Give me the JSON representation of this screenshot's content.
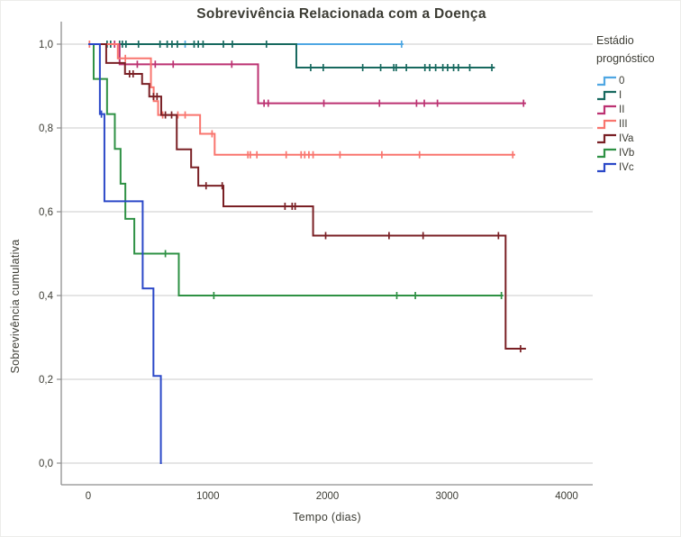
{
  "figure": {
    "title": "Sobrevivência Relacionada com a Doença",
    "x_axis_label": "Tempo (dias)",
    "y_axis_label": "Sobrevivência cumulativa"
  },
  "legend": {
    "title_line1": "Estádio",
    "title_line2": "prognóstico"
  },
  "palette": {
    "gridline": "#cbcbcb",
    "axis": "#8e8e8e",
    "text": "#3c3c34"
  },
  "chart_data": {
    "type": "line",
    "subtype": "kaplan-meier-step",
    "title": "Sobrevivência Relacionada com a Doença",
    "xlabel": "Tempo (dias)",
    "ylabel": "Sobrevivência cumulativa",
    "xlim": [
      0,
      4220
    ],
    "ylim": [
      0.0,
      1.0
    ],
    "grid": "horizontal",
    "legend_position": "right",
    "x_ticks": [
      {
        "value": 0,
        "label": "0"
      },
      {
        "value": 1000,
        "label": "1000"
      },
      {
        "value": 2000,
        "label": "2000"
      },
      {
        "value": 3000,
        "label": "3000"
      },
      {
        "value": 4000,
        "label": "4000"
      }
    ],
    "y_ticks": [
      {
        "value": 0.0,
        "label": "0,0"
      },
      {
        "value": 0.2,
        "label": "0,2"
      },
      {
        "value": 0.4,
        "label": "0,4"
      },
      {
        "value": 0.6,
        "label": "0,6"
      },
      {
        "value": 0.8,
        "label": "0,8"
      },
      {
        "value": 1.0,
        "label": "1,0"
      }
    ],
    "series": [
      {
        "name": "0",
        "color": "#4fa7e3",
        "points": [
          [
            0,
            1.0
          ],
          [
            2635,
            1.0
          ]
        ],
        "censors": [
          [
            810,
            1.0
          ],
          [
            2620,
            1.0
          ]
        ]
      },
      {
        "name": "I",
        "color": "#17695f",
        "points": [
          [
            0,
            1.0
          ],
          [
            1740,
            0.944
          ],
          [
            3400,
            0.944
          ]
        ],
        "censors": [
          [
            157,
            1.0
          ],
          [
            187,
            1.0
          ],
          [
            262,
            1.0
          ],
          [
            285,
            1.0
          ],
          [
            315,
            1.0
          ],
          [
            420,
            1.0
          ],
          [
            600,
            1.0
          ],
          [
            660,
            1.0
          ],
          [
            700,
            1.0
          ],
          [
            745,
            1.0
          ],
          [
            885,
            1.0
          ],
          [
            920,
            1.0
          ],
          [
            960,
            1.0
          ],
          [
            1130,
            1.0
          ],
          [
            1205,
            1.0
          ],
          [
            1490,
            1.0
          ],
          [
            1860,
            0.944
          ],
          [
            1965,
            0.944
          ],
          [
            2295,
            0.944
          ],
          [
            2445,
            0.944
          ],
          [
            2555,
            0.944
          ],
          [
            2575,
            0.944
          ],
          [
            2660,
            0.944
          ],
          [
            2815,
            0.944
          ],
          [
            2855,
            0.944
          ],
          [
            2905,
            0.944
          ],
          [
            2965,
            0.944
          ],
          [
            3005,
            0.944
          ],
          [
            3055,
            0.944
          ],
          [
            3095,
            0.944
          ],
          [
            3190,
            0.944
          ],
          [
            3375,
            0.944
          ]
        ]
      },
      {
        "name": "II",
        "color": "#bc3272",
        "points": [
          [
            0,
            1.0
          ],
          [
            262,
            0.952
          ],
          [
            1420,
            0.859
          ],
          [
            3660,
            0.859
          ]
        ],
        "censors": [
          [
            220,
            1.0
          ],
          [
            410,
            0.952
          ],
          [
            525,
            0.952
          ],
          [
            560,
            0.952
          ],
          [
            710,
            0.952
          ],
          [
            1200,
            0.952
          ],
          [
            1470,
            0.859
          ],
          [
            1505,
            0.859
          ],
          [
            1970,
            0.859
          ],
          [
            2435,
            0.859
          ],
          [
            2745,
            0.859
          ],
          [
            2810,
            0.859
          ],
          [
            2920,
            0.859
          ],
          [
            3640,
            0.859
          ]
        ]
      },
      {
        "name": "III",
        "color": "#f9756e",
        "points": [
          [
            0,
            1.0
          ],
          [
            247,
            0.966
          ],
          [
            524,
            0.897
          ],
          [
            547,
            0.864
          ],
          [
            584,
            0.831
          ],
          [
            935,
            0.786
          ],
          [
            1057,
            0.736
          ],
          [
            3570,
            0.736
          ]
        ],
        "censors": [
          [
            10,
            1.0
          ],
          [
            310,
            0.966
          ],
          [
            622,
            0.831
          ],
          [
            749,
            0.831
          ],
          [
            810,
            0.831
          ],
          [
            1035,
            0.786
          ],
          [
            1335,
            0.736
          ],
          [
            1355,
            0.736
          ],
          [
            1410,
            0.736
          ],
          [
            1655,
            0.736
          ],
          [
            1780,
            0.736
          ],
          [
            1810,
            0.736
          ],
          [
            1845,
            0.736
          ],
          [
            1880,
            0.736
          ],
          [
            2105,
            0.736
          ],
          [
            2455,
            0.736
          ],
          [
            2770,
            0.736
          ],
          [
            3550,
            0.736
          ]
        ]
      },
      {
        "name": "IVa",
        "color": "#7a2025",
        "points": [
          [
            0,
            1.0
          ],
          [
            150,
            0.955
          ],
          [
            307,
            0.929
          ],
          [
            450,
            0.905
          ],
          [
            510,
            0.875
          ],
          [
            610,
            0.831
          ],
          [
            740,
            0.749
          ],
          [
            860,
            0.706
          ],
          [
            920,
            0.662
          ],
          [
            1130,
            0.613
          ],
          [
            1880,
            0.543
          ],
          [
            3490,
            0.273
          ],
          [
            3660,
            0.273
          ]
        ],
        "censors": [
          [
            345,
            0.929
          ],
          [
            375,
            0.929
          ],
          [
            545,
            0.875
          ],
          [
            575,
            0.875
          ],
          [
            645,
            0.831
          ],
          [
            697,
            0.831
          ],
          [
            985,
            0.662
          ],
          [
            1120,
            0.662
          ],
          [
            1645,
            0.613
          ],
          [
            1705,
            0.613
          ],
          [
            1730,
            0.613
          ],
          [
            1985,
            0.543
          ],
          [
            2515,
            0.543
          ],
          [
            2800,
            0.543
          ],
          [
            3430,
            0.543
          ],
          [
            3615,
            0.273
          ]
        ]
      },
      {
        "name": "IVb",
        "color": "#2e9144",
        "points": [
          [
            0,
            1.0
          ],
          [
            45,
            0.917
          ],
          [
            157,
            0.833
          ],
          [
            222,
            0.75
          ],
          [
            270,
            0.667
          ],
          [
            310,
            0.583
          ],
          [
            385,
            0.5
          ],
          [
            757,
            0.4
          ],
          [
            3470,
            0.4
          ]
        ],
        "censors": [
          [
            645,
            0.5
          ],
          [
            1050,
            0.4
          ],
          [
            2580,
            0.4
          ],
          [
            2735,
            0.4
          ],
          [
            3455,
            0.4
          ]
        ]
      },
      {
        "name": "IVc",
        "color": "#2b48c8",
        "points": [
          [
            0,
            1.0
          ],
          [
            97,
            0.833
          ],
          [
            135,
            0.625
          ],
          [
            455,
            0.417
          ],
          [
            545,
            0.208
          ],
          [
            607,
            0.0
          ],
          [
            615,
            0.0
          ]
        ],
        "censors": [
          [
            110,
            0.833
          ]
        ]
      }
    ]
  }
}
